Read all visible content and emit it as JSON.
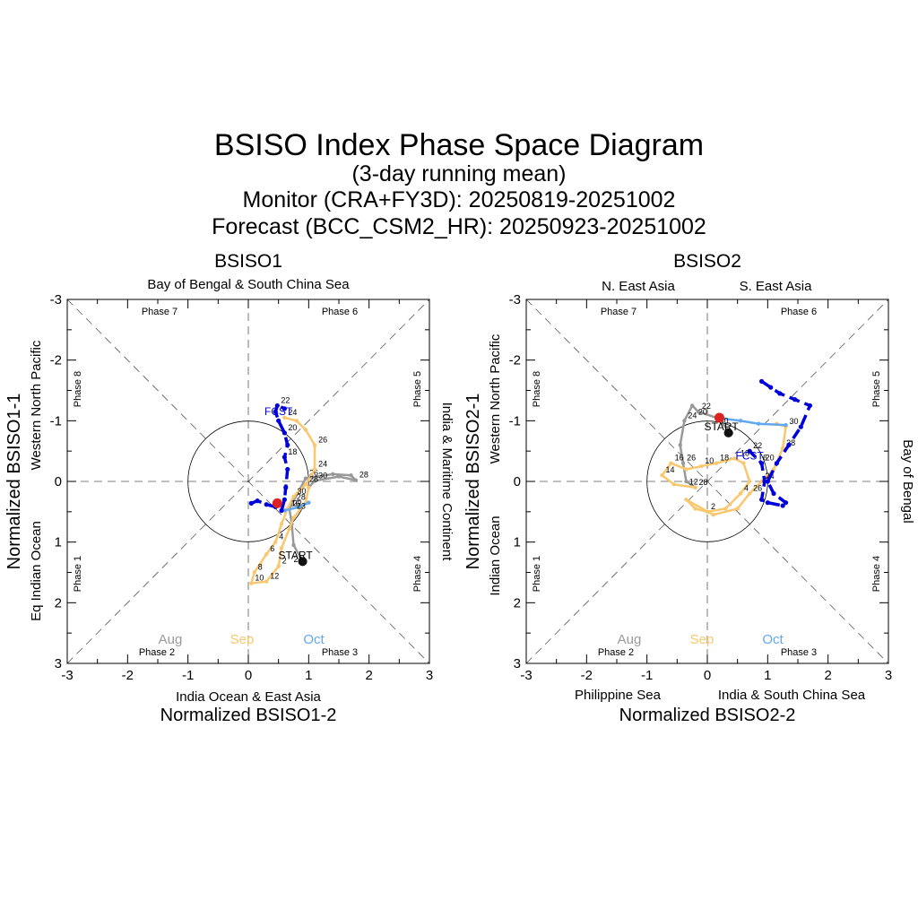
{
  "title": "BSISO Index Phase Space Diagram",
  "subtitle": "(3-day running mean)",
  "monitor_line": "Monitor (CRA+FY3D): 20250819-20251002",
  "forecast_line": "Forecast (BCC_CSM2_HR): 20250923-20251002",
  "colors": {
    "aug": "#999999",
    "sep": "#f9c76e",
    "oct": "#62a8ef",
    "forecast": "#0000dd",
    "start": "#111111",
    "end": "#dd2222",
    "grid": "#555555"
  },
  "months": {
    "aug": "Aug",
    "sep": "Sep",
    "oct": "Oct"
  },
  "markers": {
    "start": "START",
    "fcst": "FCST"
  },
  "chart_data": [
    {
      "type": "scatter",
      "title": "BSISO1",
      "xlabel": "Normalized BSISO1-2",
      "ylabel": "Normalized BSISO1-1",
      "xlim": [
        -3,
        3
      ],
      "ylim": [
        -3,
        3
      ],
      "y_inverted": true,
      "ticks": [
        -3,
        -2,
        -1,
        0,
        1,
        2,
        3
      ],
      "tick_labels": [
        "-3",
        "-2",
        "-1",
        "0",
        "1",
        "2",
        "3"
      ],
      "region_top": "Bay of Bengal & South China Sea",
      "region_bottom": "India Ocean & East Asia",
      "region_right": "India & Maritime Continent",
      "left_outer": "Eq Indian Ocean",
      "left_upper": "Western North Pacific",
      "phases": {
        "p7": "Phase 7",
        "p6": "Phase 6",
        "p8": "Phase 8",
        "p5": "Phase 5",
        "p1": "Phase 1",
        "p4": "Phase 4",
        "p2": "Phase 2",
        "p3": "Phase 3"
      },
      "series": [
        {
          "name": "Aug",
          "color_key": "aug",
          "points": [
            [
              0.9,
              1.32
            ],
            [
              0.75,
              1.05
            ],
            [
              0.72,
              0.7
            ],
            [
              0.68,
              0.45
            ],
            [
              0.95,
              -0.05
            ],
            [
              1.4,
              -0.12
            ],
            [
              1.7,
              -0.1
            ],
            [
              1.78,
              -0.02
            ],
            [
              1.5,
              -0.08
            ],
            [
              1.1,
              -0.01
            ],
            [
              1.0,
              0.1
            ]
          ],
          "labels": [
            {
              "i": 3,
              "text": "22"
            },
            {
              "i": 4,
              "text": "26"
            },
            {
              "i": 7,
              "text": "28"
            },
            {
              "i": 9,
              "text": "30"
            }
          ]
        },
        {
          "name": "Sep",
          "color_key": "sep",
          "points": [
            [
              1.0,
              0.1
            ],
            [
              0.95,
              0.35
            ],
            [
              0.75,
              0.6
            ],
            [
              0.68,
              0.78
            ],
            [
              0.55,
              1.1
            ],
            [
              0.5,
              1.4
            ],
            [
              0.3,
              1.65
            ],
            [
              0.05,
              1.68
            ],
            [
              0.1,
              1.5
            ],
            [
              0.3,
              1.2
            ],
            [
              0.45,
              1.0
            ],
            [
              0.55,
              0.7
            ],
            [
              0.65,
              0.45
            ],
            [
              0.75,
              0.25
            ],
            [
              0.95,
              0.05
            ],
            [
              1.1,
              -0.2
            ],
            [
              1.1,
              -0.6
            ],
            [
              0.95,
              -0.85
            ],
            [
              0.8,
              -1.0
            ],
            [
              0.6,
              -1.05
            ]
          ],
          "labels": [
            {
              "i": 5,
              "text": "2"
            },
            {
              "i": 7,
              "text": "10"
            },
            {
              "i": 8,
              "text": "8"
            },
            {
              "i": 6,
              "text": "12"
            },
            {
              "i": 10,
              "text": "4"
            },
            {
              "i": 9,
              "text": "6"
            },
            {
              "i": 12,
              "text": "16"
            },
            {
              "i": 13,
              "text": "30"
            },
            {
              "i": 14,
              "text": "28"
            },
            {
              "i": 15,
              "text": "24"
            },
            {
              "i": 16,
              "text": "26"
            },
            {
              "i": 19,
              "text": "24"
            }
          ]
        },
        {
          "name": "Oct",
          "color_key": "oct",
          "points": [
            [
              0.6,
              0.48
            ],
            [
              0.85,
              0.42
            ],
            [
              1.0,
              0.35
            ]
          ],
          "labels": []
        }
      ],
      "forecast": {
        "name": "FCST",
        "color_key": "forecast",
        "points": [
          [
            0.05,
            0.36
          ],
          [
            0.15,
            0.32
          ],
          [
            0.3,
            0.38
          ],
          [
            0.45,
            0.42
          ],
          [
            0.55,
            0.48
          ],
          [
            0.6,
            0.3
          ],
          [
            0.62,
            0.1
          ],
          [
            0.65,
            -0.2
          ],
          [
            0.6,
            -0.4
          ],
          [
            0.65,
            -0.6
          ],
          [
            0.6,
            -0.8
          ],
          [
            0.5,
            -1.0
          ],
          [
            0.45,
            -1.15
          ],
          [
            0.48,
            -1.25
          ],
          [
            0.6,
            -1.2
          ]
        ],
        "labels": [
          {
            "i": 13,
            "text": "22"
          },
          {
            "i": 10,
            "text": "20"
          },
          {
            "i": 8,
            "text": "18"
          }
        ]
      },
      "start_point": [
        0.9,
        1.32
      ],
      "end_point": [
        0.48,
        0.36
      ],
      "fcst_point": [
        0.5,
        -1.15
      ],
      "extra_labels": [
        {
          "x": 0.8,
          "y": 0.3,
          "text": "28"
        },
        {
          "x": 0.8,
          "y": 0.45,
          "text": "23"
        },
        {
          "x": 0.75,
          "y": 1.33,
          "text": "24"
        }
      ]
    },
    {
      "type": "scatter",
      "title": "BSISO2",
      "xlabel": "Normalized BSISO2-2",
      "ylabel": "Normalized BSISO2-1",
      "xlim": [
        -3,
        3
      ],
      "ylim": [
        -3,
        3
      ],
      "y_inverted": true,
      "ticks": [
        -3,
        -2,
        -1,
        0,
        1,
        2,
        3
      ],
      "tick_labels": [
        "-3",
        "-2",
        "-1",
        "0",
        "1",
        "2",
        "3"
      ],
      "region_top_left": "N. East Asia",
      "region_top_right": "S. East Asia",
      "region_bottom_left": "Philippine Sea",
      "region_bottom_right": "India & South China Sea",
      "region_right": "Bay of Bengal",
      "left_outer": "Indian Ocean",
      "left_upper": "Western North Pacific",
      "phases": {
        "p7": "Phase 7",
        "p6": "Phase 6",
        "p8": "Phase 8",
        "p5": "Phase 5",
        "p1": "Phase 1",
        "p4": "Phase 4",
        "p2": "Phase 2",
        "p3": "Phase 3"
      },
      "series": [
        {
          "name": "Aug",
          "color_key": "aug",
          "points": [
            [
              0.4,
              -0.8
            ],
            [
              0.15,
              -1.05
            ],
            [
              -0.15,
              -1.15
            ],
            [
              -0.25,
              -1.25
            ],
            [
              -0.38,
              -1.0
            ],
            [
              -0.45,
              -0.6
            ],
            [
              -0.4,
              -0.3
            ],
            [
              -0.35,
              0.0
            ],
            [
              -0.2,
              0.1
            ]
          ],
          "labels": [
            {
              "i": 2,
              "text": "22"
            },
            {
              "i": 4,
              "text": "24"
            },
            {
              "i": 6,
              "text": "26"
            },
            {
              "i": 8,
              "text": "28"
            }
          ]
        },
        {
          "name": "Sep",
          "color_key": "sep",
          "points": [
            [
              -0.2,
              0.1
            ],
            [
              -0.55,
              0.05
            ],
            [
              -0.75,
              -0.1
            ],
            [
              -0.6,
              -0.3
            ],
            [
              -0.35,
              -0.2
            ],
            [
              -0.1,
              -0.25
            ],
            [
              0.15,
              -0.3
            ],
            [
              0.45,
              -0.38
            ],
            [
              0.6,
              -0.3
            ],
            [
              0.7,
              0.0
            ],
            [
              0.55,
              0.2
            ],
            [
              0.3,
              0.45
            ],
            [
              0.0,
              0.5
            ],
            [
              -0.2,
              0.45
            ],
            [
              -0.35,
              0.3
            ],
            [
              0.1,
              0.55
            ],
            [
              0.5,
              0.45
            ],
            [
              0.7,
              0.2
            ],
            [
              0.9,
              0.0
            ],
            [
              1.1,
              -0.2
            ],
            [
              1.25,
              -0.55
            ],
            [
              1.3,
              -0.9
            ],
            [
              1.15,
              -0.95
            ]
          ],
          "labels": [
            {
              "i": 3,
              "text": "16"
            },
            {
              "i": 2,
              "text": "14"
            },
            {
              "i": 5,
              "text": "10"
            },
            {
              "i": 6,
              "text": "18"
            },
            {
              "i": 12,
              "text": "2"
            },
            {
              "i": 10,
              "text": "4"
            },
            {
              "i": 17,
              "text": "26"
            },
            {
              "i": 18,
              "text": "24"
            },
            {
              "i": 20,
              "text": "28"
            },
            {
              "i": 21,
              "text": "30"
            }
          ]
        },
        {
          "name": "Oct",
          "color_key": "oct",
          "points": [
            [
              0.15,
              -1.05
            ],
            [
              0.55,
              -1.0
            ],
            [
              0.85,
              -0.95
            ],
            [
              1.3,
              -0.93
            ]
          ],
          "labels": []
        }
      ],
      "forecast": {
        "name": "FCST",
        "color_key": "forecast",
        "points": [
          [
            0.9,
            -1.65
          ],
          [
            1.05,
            -1.55
          ],
          [
            1.2,
            -1.45
          ],
          [
            1.45,
            -1.35
          ],
          [
            1.7,
            -1.25
          ],
          [
            1.55,
            -0.9
          ],
          [
            1.35,
            -0.6
          ],
          [
            1.15,
            -0.3
          ],
          [
            1.0,
            0.0
          ],
          [
            1.1,
            0.2
          ],
          [
            1.3,
            0.35
          ],
          [
            1.25,
            0.4
          ],
          [
            1.0,
            0.35
          ],
          [
            0.9,
            0.3
          ],
          [
            0.95,
            0.0
          ],
          [
            0.9,
            -0.3
          ],
          [
            0.7,
            -0.5
          ]
        ],
        "labels": [
          {
            "i": 16,
            "text": "22"
          },
          {
            "i": 15,
            "text": "20"
          }
        ]
      },
      "start_point": [
        0.35,
        -0.8
      ],
      "end_point": [
        0.2,
        -1.05
      ],
      "fcst_point": [
        0.7,
        -0.42
      ],
      "extra_labels": [
        {
          "x": -0.15,
          "y": -1.1,
          "text": "20"
        },
        {
          "x": -0.3,
          "y": 0.05,
          "text": "12"
        },
        {
          "x": 0.2,
          "y": -0.95,
          "text": "30"
        },
        {
          "x": 0.55,
          "y": -0.42,
          "text": "18"
        },
        {
          "x": 0.92,
          "y": -0.35,
          "text": "6"
        }
      ]
    }
  ]
}
